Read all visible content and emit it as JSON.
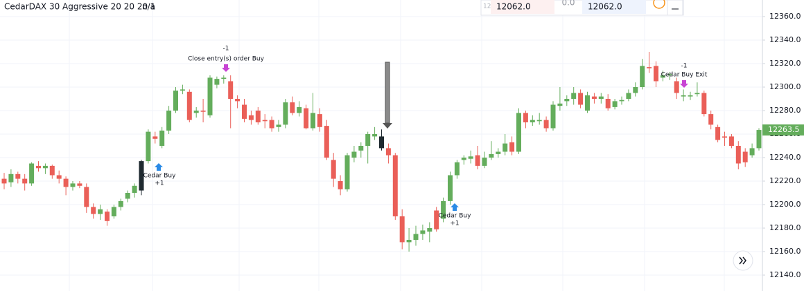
{
  "chart_data": {
    "type": "candlestick",
    "title": "CedarDAX 30 Aggressive 20 20 20 1",
    "subtitle": "n/a",
    "up_color": "#64ad5c",
    "down_color": "#ea5f58",
    "highlight_color": "#1f2a30",
    "highlighted": [
      20,
      55
    ],
    "ylim": [
      12128,
      12372
    ],
    "yticks": [
      {
        "value": 12140,
        "label": "12140.0"
      },
      {
        "value": 12160,
        "label": "12160.0"
      },
      {
        "value": 12180,
        "label": "12180.0"
      },
      {
        "value": 12200,
        "label": "12200.0"
      },
      {
        "value": 12220,
        "label": "12220.0"
      },
      {
        "value": 12240,
        "label": "12240.0"
      },
      {
        "value": 12260,
        "label": "12260.0"
      },
      {
        "value": 12280,
        "label": "12280.0"
      },
      {
        "value": 12300,
        "label": "12300.0"
      },
      {
        "value": 12320,
        "label": "12320.0"
      },
      {
        "value": 12340,
        "label": "12340.0"
      },
      {
        "value": 12360,
        "label": "12360.0"
      }
    ],
    "grid": true,
    "open": [
      12222,
      12219,
      12226,
      12222,
      12218,
      12233,
      12231,
      12233,
      12225,
      12222,
      12215,
      12218,
      12215,
      12198,
      12192,
      12194,
      12190,
      12198,
      12205,
      12210,
      12212,
      12237,
      12258,
      12250,
      12263,
      12280,
      12297,
      12296,
      12278,
      12280,
      12276,
      12302,
      12307,
      12305,
      12290,
      12285,
      12276,
      12280,
      12272,
      12272,
      12266,
      12268,
      12287,
      12278,
      12282,
      12265,
      12277,
      12267,
      12238,
      12220,
      12213,
      12240,
      12246,
      12250,
      12258,
      12258,
      12248,
      12242,
      12190,
      12168,
      12170,
      12175,
      12177,
      12195,
      12188,
      12203,
      12225,
      12238,
      12239,
      12242,
      12233,
      12240,
      12243,
      12245,
      12253,
      12245,
      12278,
      12270,
      12271,
      12272,
      12265,
      12284,
      12288,
      12290,
      12295,
      12280,
      12292,
      12290,
      12290,
      12283,
      12288,
      12290,
      12295,
      12300,
      12317,
      12318,
      12308,
      12310,
      12305,
      12292,
      12292,
      12294,
      12295,
      12277,
      12266,
      12258,
      12258,
      12250,
      12245,
      12242,
      12248
    ],
    "high": [
      12227,
      12230,
      12228,
      12226,
      12236,
      12237,
      12235,
      12234,
      12229,
      12224,
      12220,
      12220,
      12218,
      12201,
      12200,
      12196,
      12200,
      12205,
      12212,
      12218,
      12238,
      12264,
      12262,
      12266,
      12284,
      12300,
      12302,
      12298,
      12283,
      12290,
      12310,
      12309,
      12310,
      12310,
      12293,
      12290,
      12280,
      12283,
      12277,
      12275,
      12272,
      12290,
      12292,
      12288,
      12285,
      12295,
      12282,
      12272,
      12244,
      12225,
      12244,
      12250,
      12253,
      12262,
      12266,
      12264,
      12252,
      12244,
      12196,
      12180,
      12182,
      12183,
      12185,
      12198,
      12206,
      12228,
      12238,
      12242,
      12246,
      12250,
      12245,
      12254,
      12248,
      12260,
      12258,
      12282,
      12280,
      12276,
      12278,
      12275,
      12288,
      12300,
      12293,
      12300,
      12298,
      12296,
      12295,
      12295,
      12294,
      12290,
      12292,
      12298,
      12304,
      12324,
      12330,
      12322,
      12314,
      12313,
      12308,
      12298,
      12296,
      12304,
      12297,
      12280,
      12268,
      12262,
      12260,
      12254,
      12248,
      12252,
      12265
    ],
    "low": [
      12213,
      12215,
      12218,
      12212,
      12216,
      12228,
      12226,
      12222,
      12218,
      12208,
      12212,
      12214,
      12193,
      12188,
      12187,
      12182,
      12188,
      12195,
      12202,
      12206,
      12208,
      12235,
      12252,
      12248,
      12260,
      12278,
      12294,
      12270,
      12274,
      12270,
      12274,
      12299,
      12303,
      12265,
      12282,
      12270,
      12268,
      12268,
      12265,
      12262,
      12262,
      12265,
      12276,
      12275,
      12264,
      12263,
      12262,
      12238,
      12215,
      12208,
      12211,
      12236,
      12240,
      12235,
      12255,
      12246,
      12235,
      12187,
      12162,
      12160,
      12165,
      12170,
      12168,
      12177,
      12185,
      12200,
      12222,
      12234,
      12235,
      12230,
      12231,
      12238,
      12240,
      12242,
      12242,
      12243,
      12265,
      12267,
      12268,
      12262,
      12263,
      12280,
      12284,
      12285,
      12282,
      12278,
      12286,
      12286,
      12280,
      12281,
      12285,
      12288,
      12292,
      12298,
      12312,
      12300,
      12305,
      12306,
      12290,
      12288,
      12289,
      12292,
      12275,
      12264,
      12253,
      12250,
      12248,
      12230,
      12232,
      12240,
      12246
    ],
    "close": [
      12218,
      12226,
      12222,
      12218,
      12235,
      12231,
      12233,
      12225,
      12222,
      12215,
      12218,
      12216,
      12198,
      12192,
      12196,
      12186,
      12198,
      12203,
      12210,
      12216,
      12237,
      12262,
      12256,
      12263,
      12280,
      12297,
      12298,
      12272,
      12280,
      12279,
      12308,
      12307,
      12308,
      12290,
      12288,
      12273,
      12272,
      12270,
      12271,
      12265,
      12268,
      12287,
      12278,
      12283,
      12265,
      12278,
      12266,
      12240,
      12222,
      12213,
      12242,
      12245,
      12250,
      12260,
      12260,
      12248,
      12242,
      12190,
      12168,
      12170,
      12175,
      12178,
      12180,
      12179,
      12203,
      12225,
      12236,
      12240,
      12241,
      12233,
      12240,
      12243,
      12245,
      12252,
      12245,
      12278,
      12270,
      12272,
      12272,
      12265,
      12285,
      12286,
      12290,
      12295,
      12285,
      12293,
      12290,
      12292,
      12282,
      12288,
      12289,
      12295,
      12300,
      12318,
      12316,
      12305,
      12310,
      12311,
      12295,
      12293,
      12293,
      12295,
      12277,
      12268,
      12255,
      12257,
      12250,
      12235,
      12236,
      12248,
      12263.5
    ],
    "annotations": {
      "exit_top": {
        "qty": "-1",
        "text": "Close entry(s) order Buy"
      },
      "buy1": {
        "text": "Cedar Buy",
        "qty": "+1"
      },
      "buy2": {
        "text": "Cedar Buy",
        "qty": "+1"
      },
      "exit2": {
        "qty": "-1",
        "text": "Cedar Buy Exit"
      }
    },
    "order_panel": {
      "left": "12062.0",
      "spread": "0.0",
      "right": "12062.0",
      "prefix": "12"
    }
  }
}
